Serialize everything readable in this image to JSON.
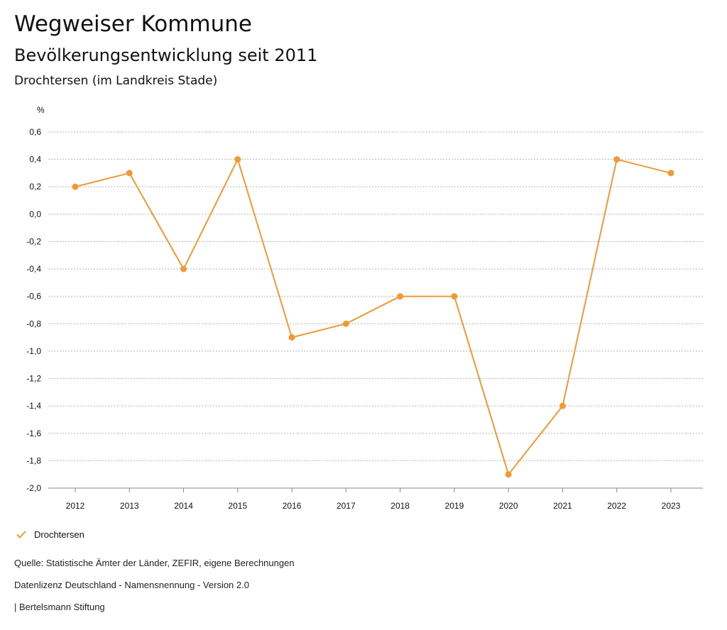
{
  "header": {
    "title": "Wegweiser Kommune",
    "subtitle": "Bevölkerungsentwicklung seit 2011",
    "chart_subtitle": "Drochtersen (im Landkreis Stade)"
  },
  "chart_data": {
    "type": "line",
    "title": "Bevölkerungsentwicklung seit 2011",
    "subtitle": "Drochtersen (im Landkreis Stade)",
    "xlabel": "",
    "ylabel": "%",
    "x": [
      "2012",
      "2013",
      "2014",
      "2015",
      "2016",
      "2017",
      "2018",
      "2019",
      "2020",
      "2021",
      "2022",
      "2023"
    ],
    "series": [
      {
        "name": "Drochtersen",
        "values": [
          0.2,
          0.3,
          -0.4,
          0.4,
          -0.9,
          -0.8,
          -0.6,
          -0.6,
          -1.9,
          -1.4,
          0.4,
          0.3
        ]
      }
    ],
    "ylim": [
      -2.0,
      0.6
    ],
    "yticks": [
      0.6,
      0.4,
      0.2,
      0.0,
      -0.2,
      -0.4,
      -0.6,
      -0.8,
      -1.0,
      -1.2,
      -1.4,
      -1.6,
      -1.8,
      -2.0
    ],
    "ytick_labels": [
      "0,6",
      "0,4",
      "0,2",
      "0,0",
      "-0,2",
      "-0,4",
      "-0,6",
      "-0,8",
      "-1,0",
      "-1,2",
      "-1,4",
      "-1,6",
      "-1,8",
      "-2,0"
    ],
    "grid": true,
    "legend": "bottom-left",
    "color": "#f09a35"
  },
  "legend": {
    "label": "Drochtersen",
    "icon": "check-icon"
  },
  "footer": {
    "source": "Quelle: Statistische Ämter der Länder, ZEFIR, eigene Berechnungen",
    "license": "Datenlizenz Deutschland - Namensnennung - Version 2.0",
    "credit": "| Bertelsmann Stiftung"
  }
}
